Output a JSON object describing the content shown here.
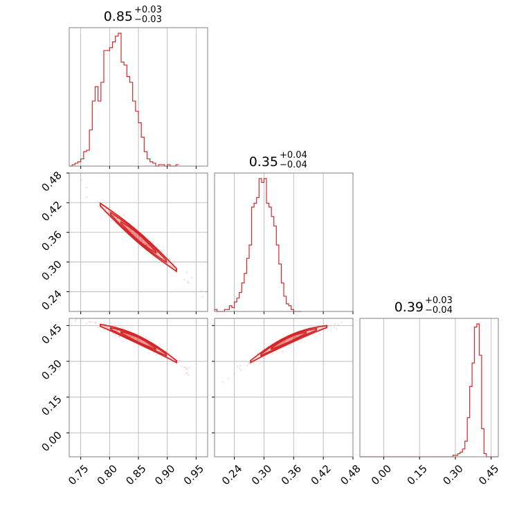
{
  "chart_data": {
    "type": "corner",
    "color": "#d62728",
    "grid": true,
    "titles": [
      {
        "value": "0.85",
        "plus": "+0.03",
        "minus": "−0.03"
      },
      {
        "value": "0.35",
        "plus": "+0.04",
        "minus": "−0.04"
      },
      {
        "value": "0.39",
        "plus": "+0.03",
        "minus": "−0.04"
      }
    ],
    "ranges": [
      [
        0.73,
        0.97
      ],
      [
        0.2,
        0.48
      ],
      [
        -0.1,
        0.48
      ]
    ],
    "ticks": {
      "p0": {
        "values": [
          0.75,
          0.8,
          0.85,
          0.9,
          0.95
        ],
        "labels": [
          "0.75",
          "0.80",
          "0.85",
          "0.90",
          "0.95"
        ]
      },
      "p1_y": {
        "values": [
          0.24,
          0.3,
          0.36,
          0.42,
          0.48
        ],
        "labels": [
          "0.24",
          "0.30",
          "0.36",
          "0.42",
          "0.48"
        ]
      },
      "p1_x": {
        "values": [
          0.24,
          0.3,
          0.36,
          0.42,
          0.48
        ],
        "labels": [
          "0.24",
          "0.30",
          "0.36",
          "0.42",
          "0.48"
        ]
      },
      "p2_y": {
        "values": [
          0.0,
          0.15,
          0.3,
          0.45
        ],
        "labels": [
          "0.00",
          "0.15",
          "0.30",
          "0.45"
        ]
      },
      "p2_x": {
        "values": [
          0.0,
          0.15,
          0.3,
          0.45
        ],
        "labels": [
          "0.00",
          "0.15",
          "0.30",
          "0.45"
        ]
      }
    },
    "histograms": [
      {
        "param": 0,
        "bin_start": 0.73,
        "bin_width": 0.005,
        "counts": [
          0,
          1,
          2,
          3,
          5,
          10,
          11,
          25,
          45,
          55,
          45,
          58,
          80,
          80,
          82,
          86,
          90,
          92,
          72,
          70,
          62,
          58,
          45,
          38,
          30,
          20,
          10,
          5,
          3,
          2,
          0,
          1,
          1,
          0,
          1,
          0,
          0,
          1
        ]
      },
      {
        "param": 1,
        "bin_start": 0.2,
        "bin_width": 0.005,
        "counts": [
          1,
          0,
          0,
          0,
          1,
          1,
          3,
          2,
          5,
          7,
          10,
          15,
          20,
          28,
          35,
          55,
          57,
          60,
          70,
          68,
          70,
          57,
          55,
          50,
          45,
          35,
          25,
          15,
          8,
          4,
          3,
          1,
          0,
          0,
          0
        ]
      },
      {
        "param": 2,
        "bin_start": -0.1,
        "bin_width": 0.01,
        "counts": [
          0,
          0,
          0,
          0,
          0,
          0,
          0,
          0,
          0,
          0,
          0,
          0,
          0,
          0,
          0,
          0,
          0,
          0,
          0,
          0,
          0,
          0,
          0,
          0,
          0,
          0,
          0,
          0,
          0,
          0,
          0,
          0,
          0,
          0,
          0,
          0,
          0,
          0,
          0,
          1,
          1,
          2,
          3,
          5,
          10,
          25,
          45,
          60,
          83,
          85,
          65,
          18,
          2,
          0,
          0,
          0,
          0,
          0
        ]
      }
    ],
    "scatter": [
      {
        "x_param": 0,
        "y_param": 1,
        "relation": "y = 1.2 - x",
        "x_span": [
          0.76,
          0.97
        ]
      },
      {
        "x_param": 0,
        "y_param": 2,
        "relation": "y = 0.39 - 1.15*(x-0.85) - 3.5*(x-0.85)^2",
        "x_span": [
          0.76,
          0.97
        ]
      },
      {
        "x_param": 1,
        "y_param": 2,
        "relation": "y = 0.39 + 0.95*(x-0.35) - 3.0*(x-0.35)^2",
        "x_span": [
          0.24,
          0.44
        ]
      }
    ]
  }
}
